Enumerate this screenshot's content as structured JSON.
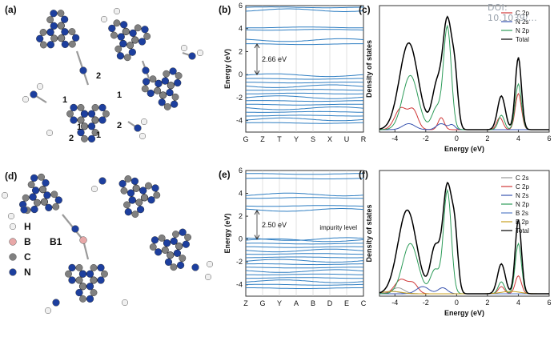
{
  "watermark": "DOI: 10.1039/...",
  "colors": {
    "band": "#2f7ec2",
    "c2p": "#d03a3a",
    "n2s": "#3a55b0",
    "n2p": "#2e9c5a",
    "c2s": "#9a9a9a",
    "b2s": "#5a7ec8",
    "b2p": "#c8a020",
    "total": "#000000",
    "atomN": "#1d3f9e",
    "atomC": "#808080",
    "atomH": "#f0f0f0",
    "atomB": "#e8a8a8"
  },
  "panels": {
    "a": {
      "label": "(a)",
      "site_labels": [
        "2",
        "1",
        "1",
        "1",
        "2",
        "2",
        "1"
      ]
    },
    "b": {
      "label": "(b)",
      "ylabel": "Energy (eV)",
      "gap_label": "2.66 eV",
      "kpoints": [
        "G",
        "Z",
        "T",
        "Y",
        "S",
        "X",
        "U",
        "R"
      ],
      "yticks": [
        "6",
        "4",
        "2",
        "0",
        "-2",
        "-4"
      ]
    },
    "c": {
      "label": "(c)",
      "ylabel": "Density of states",
      "xlabel": "Energy (eV)",
      "xticks": [
        "-4",
        "-2",
        "0",
        "2",
        "4",
        "6"
      ],
      "legend": [
        "C 2p",
        "N 2s",
        "N 2p",
        "Total"
      ]
    },
    "d": {
      "label": "(d)",
      "b_site": "B1",
      "legend": [
        "H",
        "B",
        "C",
        "N"
      ]
    },
    "e": {
      "label": "(e)",
      "ylabel": "Energy (eV)",
      "gap_label": "2.50 eV",
      "impurity_label": "impurity level",
      "kpoints": [
        "Z",
        "G",
        "Y",
        "A",
        "B",
        "D",
        "E",
        "C"
      ],
      "yticks": [
        "6",
        "4",
        "2",
        "0",
        "-2",
        "-4"
      ]
    },
    "f": {
      "label": "(f)",
      "ylabel": "Density of states",
      "xlabel": "Energy (eV)",
      "xticks": [
        "-4",
        "-2",
        "0",
        "2",
        "4",
        "6"
      ],
      "legend": [
        "C 2s",
        "C 2p",
        "N 2s",
        "N 2p",
        "B 2s",
        "B 2p",
        "Total"
      ]
    }
  }
}
